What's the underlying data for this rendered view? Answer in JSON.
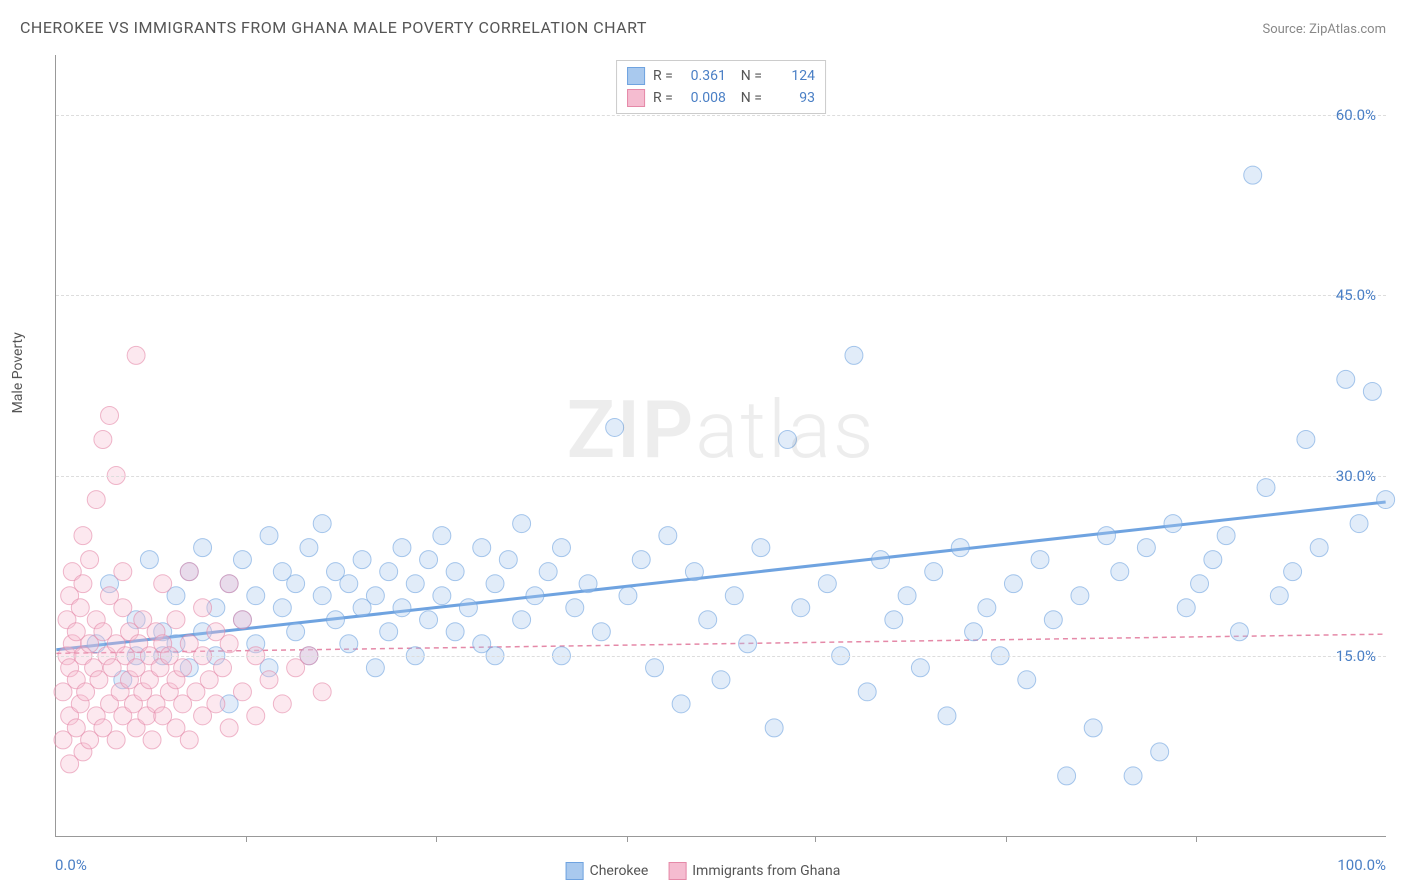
{
  "title": "CHEROKEE VS IMMIGRANTS FROM GHANA MALE POVERTY CORRELATION CHART",
  "source_label": "Source: ZipAtlas.com",
  "y_axis_label": "Male Poverty",
  "watermark": "ZIPatlas",
  "chart": {
    "type": "scatter",
    "background_color": "#ffffff",
    "grid_color": "#dddddd",
    "axis_line_color": "#999999",
    "tick_label_color": "#4a7fc5",
    "xlim": [
      0,
      100
    ],
    "ylim": [
      0,
      65
    ],
    "x_min_label": "0.0%",
    "x_max_label": "100.0%",
    "y_ticks": [
      {
        "value": 15,
        "label": "15.0%"
      },
      {
        "value": 30,
        "label": "30.0%"
      },
      {
        "value": 45,
        "label": "45.0%"
      },
      {
        "value": 60,
        "label": "60.0%"
      }
    ],
    "x_tick_positions": [
      14.3,
      28.6,
      42.9,
      57.1,
      71.4,
      85.7
    ],
    "marker_radius": 9,
    "marker_opacity": 0.35,
    "marker_stroke_opacity": 0.6,
    "series": [
      {
        "name": "Cherokee",
        "color": "#6fa3e0",
        "fill_color": "#a9c9ee",
        "trend_line": {
          "x1": 0,
          "y1": 15.5,
          "x2": 100,
          "y2": 27.8,
          "width": 3,
          "dash": "none"
        },
        "stats": {
          "R": "0.361",
          "N": "124"
        },
        "points": [
          [
            3,
            16
          ],
          [
            4,
            21
          ],
          [
            5,
            13
          ],
          [
            6,
            18
          ],
          [
            6,
            15
          ],
          [
            7,
            23
          ],
          [
            8,
            17
          ],
          [
            8,
            15
          ],
          [
            9,
            20
          ],
          [
            9,
            16
          ],
          [
            10,
            14
          ],
          [
            10,
            22
          ],
          [
            11,
            17
          ],
          [
            11,
            24
          ],
          [
            12,
            19
          ],
          [
            12,
            15
          ],
          [
            13,
            21
          ],
          [
            13,
            11
          ],
          [
            14,
            18
          ],
          [
            14,
            23
          ],
          [
            15,
            16
          ],
          [
            15,
            20
          ],
          [
            16,
            25
          ],
          [
            16,
            14
          ],
          [
            17,
            19
          ],
          [
            17,
            22
          ],
          [
            18,
            21
          ],
          [
            18,
            17
          ],
          [
            19,
            24
          ],
          [
            19,
            15
          ],
          [
            20,
            20
          ],
          [
            20,
            26
          ],
          [
            21,
            18
          ],
          [
            21,
            22
          ],
          [
            22,
            16
          ],
          [
            22,
            21
          ],
          [
            23,
            19
          ],
          [
            23,
            23
          ],
          [
            24,
            20
          ],
          [
            24,
            14
          ],
          [
            25,
            22
          ],
          [
            25,
            17
          ],
          [
            26,
            24
          ],
          [
            26,
            19
          ],
          [
            27,
            21
          ],
          [
            27,
            15
          ],
          [
            28,
            23
          ],
          [
            28,
            18
          ],
          [
            29,
            20
          ],
          [
            29,
            25
          ],
          [
            30,
            17
          ],
          [
            30,
            22
          ],
          [
            31,
            19
          ],
          [
            32,
            24
          ],
          [
            32,
            16
          ],
          [
            33,
            21
          ],
          [
            33,
            15
          ],
          [
            34,
            23
          ],
          [
            35,
            18
          ],
          [
            35,
            26
          ],
          [
            36,
            20
          ],
          [
            37,
            22
          ],
          [
            38,
            15
          ],
          [
            38,
            24
          ],
          [
            39,
            19
          ],
          [
            40,
            21
          ],
          [
            41,
            17
          ],
          [
            42,
            34
          ],
          [
            43,
            20
          ],
          [
            44,
            23
          ],
          [
            45,
            14
          ],
          [
            46,
            25
          ],
          [
            47,
            11
          ],
          [
            48,
            22
          ],
          [
            49,
            18
          ],
          [
            50,
            13
          ],
          [
            51,
            20
          ],
          [
            52,
            16
          ],
          [
            53,
            24
          ],
          [
            54,
            9
          ],
          [
            55,
            33
          ],
          [
            56,
            19
          ],
          [
            58,
            21
          ],
          [
            59,
            15
          ],
          [
            60,
            40
          ],
          [
            61,
            12
          ],
          [
            62,
            23
          ],
          [
            63,
            18
          ],
          [
            64,
            20
          ],
          [
            65,
            14
          ],
          [
            66,
            22
          ],
          [
            67,
            10
          ],
          [
            68,
            24
          ],
          [
            69,
            17
          ],
          [
            70,
            19
          ],
          [
            71,
            15
          ],
          [
            72,
            21
          ],
          [
            73,
            13
          ],
          [
            74,
            23
          ],
          [
            75,
            18
          ],
          [
            76,
            5
          ],
          [
            77,
            20
          ],
          [
            78,
            9
          ],
          [
            79,
            25
          ],
          [
            80,
            22
          ],
          [
            81,
            5
          ],
          [
            82,
            24
          ],
          [
            83,
            7
          ],
          [
            84,
            26
          ],
          [
            85,
            19
          ],
          [
            86,
            21
          ],
          [
            87,
            23
          ],
          [
            88,
            25
          ],
          [
            89,
            17
          ],
          [
            90,
            55
          ],
          [
            91,
            29
          ],
          [
            92,
            20
          ],
          [
            93,
            22
          ],
          [
            94,
            33
          ],
          [
            95,
            24
          ],
          [
            97,
            38
          ],
          [
            98,
            26
          ],
          [
            99,
            37
          ],
          [
            100,
            28
          ]
        ]
      },
      {
        "name": "Immigrants from Ghana",
        "color": "#e589a8",
        "fill_color": "#f5bcd0",
        "trend_line": {
          "x1": 0,
          "y1": 15.2,
          "x2": 100,
          "y2": 16.8,
          "width": 1.5,
          "dash": "5,4"
        },
        "stats": {
          "R": "0.008",
          "N": "93"
        },
        "points": [
          [
            0.5,
            8
          ],
          [
            0.5,
            12
          ],
          [
            0.8,
            15
          ],
          [
            0.8,
            18
          ],
          [
            1,
            6
          ],
          [
            1,
            10
          ],
          [
            1,
            14
          ],
          [
            1,
            20
          ],
          [
            1.2,
            16
          ],
          [
            1.2,
            22
          ],
          [
            1.5,
            9
          ],
          [
            1.5,
            13
          ],
          [
            1.5,
            17
          ],
          [
            1.8,
            11
          ],
          [
            1.8,
            19
          ],
          [
            2,
            7
          ],
          [
            2,
            15
          ],
          [
            2,
            21
          ],
          [
            2,
            25
          ],
          [
            2.2,
            12
          ],
          [
            2.5,
            8
          ],
          [
            2.5,
            16
          ],
          [
            2.5,
            23
          ],
          [
            2.8,
            14
          ],
          [
            3,
            10
          ],
          [
            3,
            18
          ],
          [
            3,
            28
          ],
          [
            3.2,
            13
          ],
          [
            3.5,
            9
          ],
          [
            3.5,
            17
          ],
          [
            3.5,
            33
          ],
          [
            3.8,
            15
          ],
          [
            4,
            11
          ],
          [
            4,
            20
          ],
          [
            4,
            35
          ],
          [
            4.2,
            14
          ],
          [
            4.5,
            8
          ],
          [
            4.5,
            16
          ],
          [
            4.5,
            30
          ],
          [
            4.8,
            12
          ],
          [
            5,
            10
          ],
          [
            5,
            19
          ],
          [
            5,
            22
          ],
          [
            5.2,
            15
          ],
          [
            5.5,
            13
          ],
          [
            5.5,
            17
          ],
          [
            5.8,
            11
          ],
          [
            6,
            9
          ],
          [
            6,
            14
          ],
          [
            6,
            40
          ],
          [
            6.2,
            16
          ],
          [
            6.5,
            12
          ],
          [
            6.5,
            18
          ],
          [
            6.8,
            10
          ],
          [
            7,
            13
          ],
          [
            7,
            15
          ],
          [
            7.2,
            8
          ],
          [
            7.5,
            11
          ],
          [
            7.5,
            17
          ],
          [
            7.8,
            14
          ],
          [
            8,
            10
          ],
          [
            8,
            16
          ],
          [
            8,
            21
          ],
          [
            8.5,
            12
          ],
          [
            8.5,
            15
          ],
          [
            9,
            9
          ],
          [
            9,
            13
          ],
          [
            9,
            18
          ],
          [
            9.5,
            11
          ],
          [
            9.5,
            14
          ],
          [
            10,
            8
          ],
          [
            10,
            16
          ],
          [
            10,
            22
          ],
          [
            10.5,
            12
          ],
          [
            11,
            10
          ],
          [
            11,
            15
          ],
          [
            11,
            19
          ],
          [
            11.5,
            13
          ],
          [
            12,
            11
          ],
          [
            12,
            17
          ],
          [
            12.5,
            14
          ],
          [
            13,
            9
          ],
          [
            13,
            16
          ],
          [
            13,
            21
          ],
          [
            14,
            12
          ],
          [
            14,
            18
          ],
          [
            15,
            10
          ],
          [
            15,
            15
          ],
          [
            16,
            13
          ],
          [
            17,
            11
          ],
          [
            18,
            14
          ],
          [
            19,
            15
          ],
          [
            20,
            12
          ]
        ]
      }
    ]
  },
  "legend_top": {
    "R_label": "R =",
    "N_label": "N ="
  },
  "legend_bottom": [
    {
      "label": "Cherokee",
      "fill": "#a9c9ee",
      "stroke": "#6fa3e0"
    },
    {
      "label": "Immigrants from Ghana",
      "fill": "#f5bcd0",
      "stroke": "#e589a8"
    }
  ]
}
